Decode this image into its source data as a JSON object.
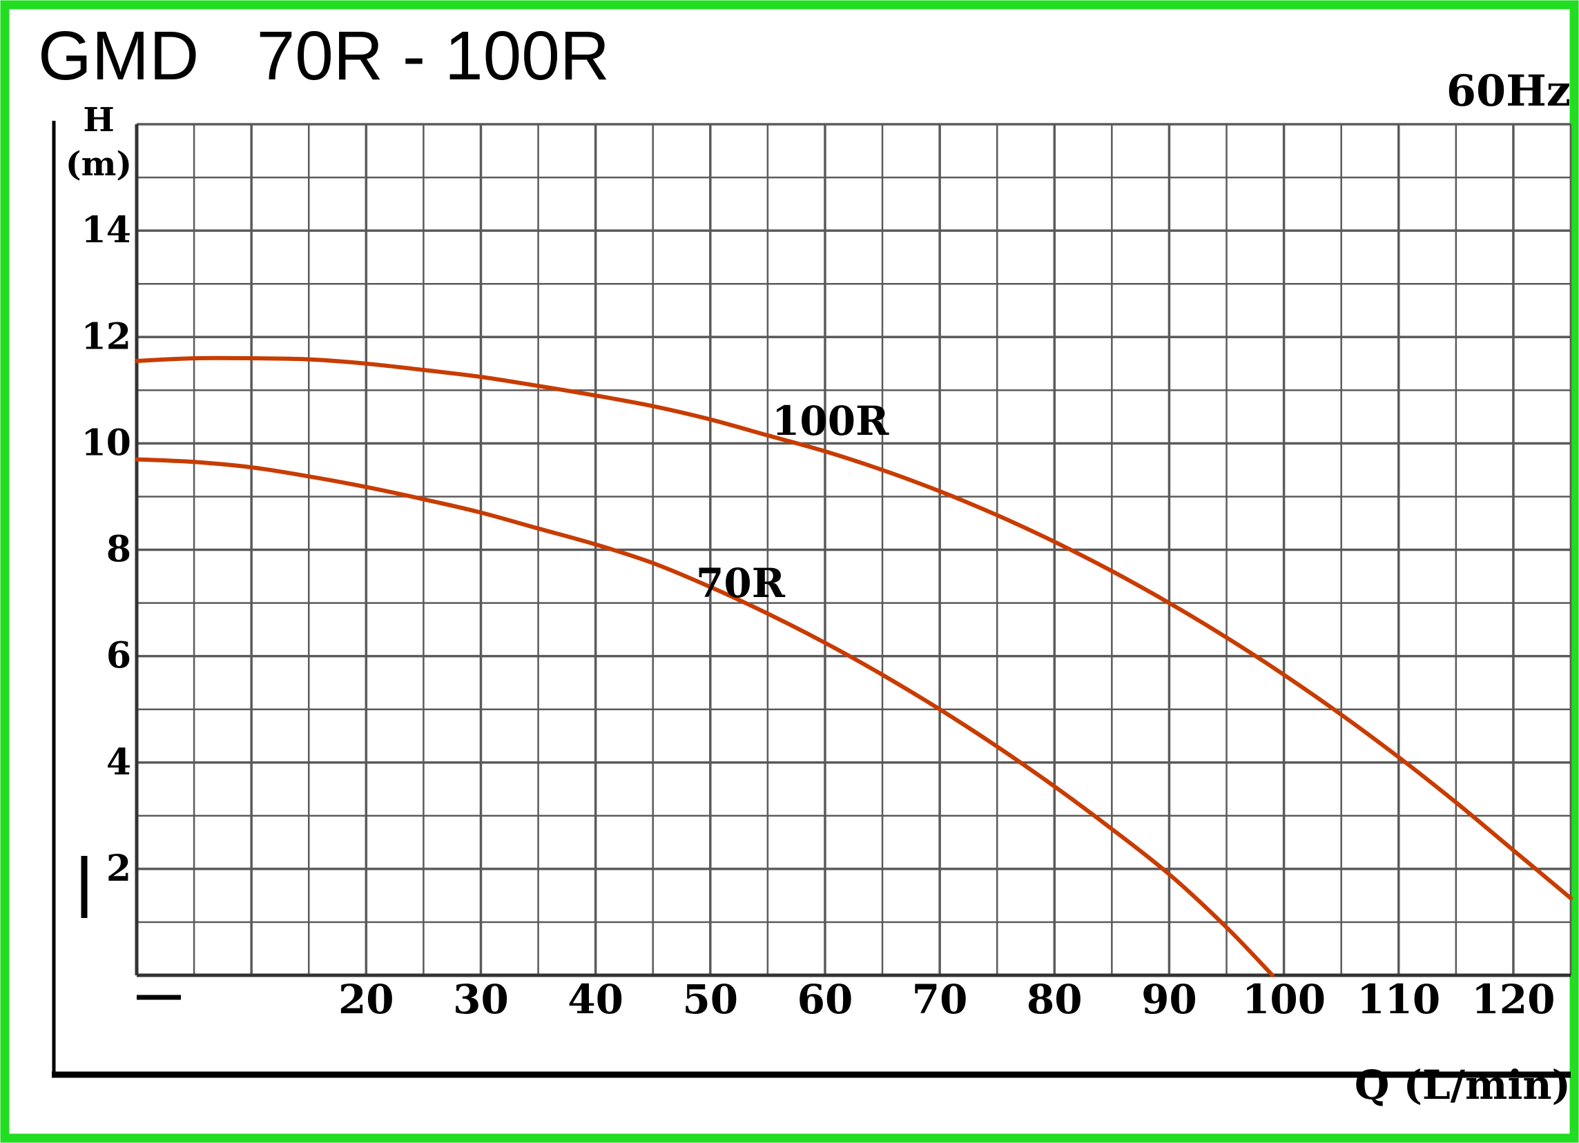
{
  "chart_data": {
    "type": "line",
    "title": "GMD   70R - 100R",
    "frequency_label": "60Hz",
    "ylabel_line1": "H",
    "ylabel_line2": "(m)",
    "xlabel": "Q (L/min)",
    "xlim": [
      0,
      125
    ],
    "ylim": [
      0,
      16
    ],
    "yticks": [
      2,
      4,
      6,
      8,
      10,
      12,
      14
    ],
    "ytick_labels": [
      "2",
      "4",
      "6",
      "8",
      "10",
      "12",
      "14"
    ],
    "xticks": [
      20,
      30,
      40,
      50,
      60,
      70,
      80,
      90,
      100,
      110,
      120
    ],
    "xtick_labels": [
      "20",
      "30",
      "40",
      "50",
      "60",
      "70",
      "80",
      "90",
      "100",
      "110",
      "120"
    ],
    "grid": true,
    "colors": {
      "curve": "#c83c00",
      "grid": "#5a5a5a",
      "frame": "#22dd22",
      "text": "#000000"
    },
    "series": [
      {
        "name": "100R",
        "x": [
          0,
          5,
          10,
          15,
          20,
          25,
          30,
          35,
          40,
          45,
          50,
          55,
          60,
          65,
          70,
          75,
          80,
          85,
          90,
          95,
          100,
          105,
          110,
          115,
          120,
          125
        ],
        "y": [
          11.55,
          11.6,
          11.6,
          11.58,
          11.5,
          11.38,
          11.25,
          11.08,
          10.9,
          10.7,
          10.45,
          10.15,
          9.85,
          9.5,
          9.1,
          8.65,
          8.15,
          7.6,
          7.0,
          6.35,
          5.65,
          4.9,
          4.1,
          3.25,
          2.35,
          1.45
        ]
      },
      {
        "name": "70R",
        "x": [
          0,
          5,
          10,
          15,
          20,
          25,
          30,
          35,
          40,
          45,
          50,
          55,
          60,
          65,
          70,
          75,
          80,
          85,
          90,
          95,
          99
        ],
        "y": [
          9.7,
          9.65,
          9.55,
          9.38,
          9.18,
          8.95,
          8.7,
          8.4,
          8.1,
          7.75,
          7.3,
          6.8,
          6.25,
          5.65,
          5.0,
          4.3,
          3.55,
          2.75,
          1.9,
          0.9,
          0.0
        ]
      }
    ]
  }
}
